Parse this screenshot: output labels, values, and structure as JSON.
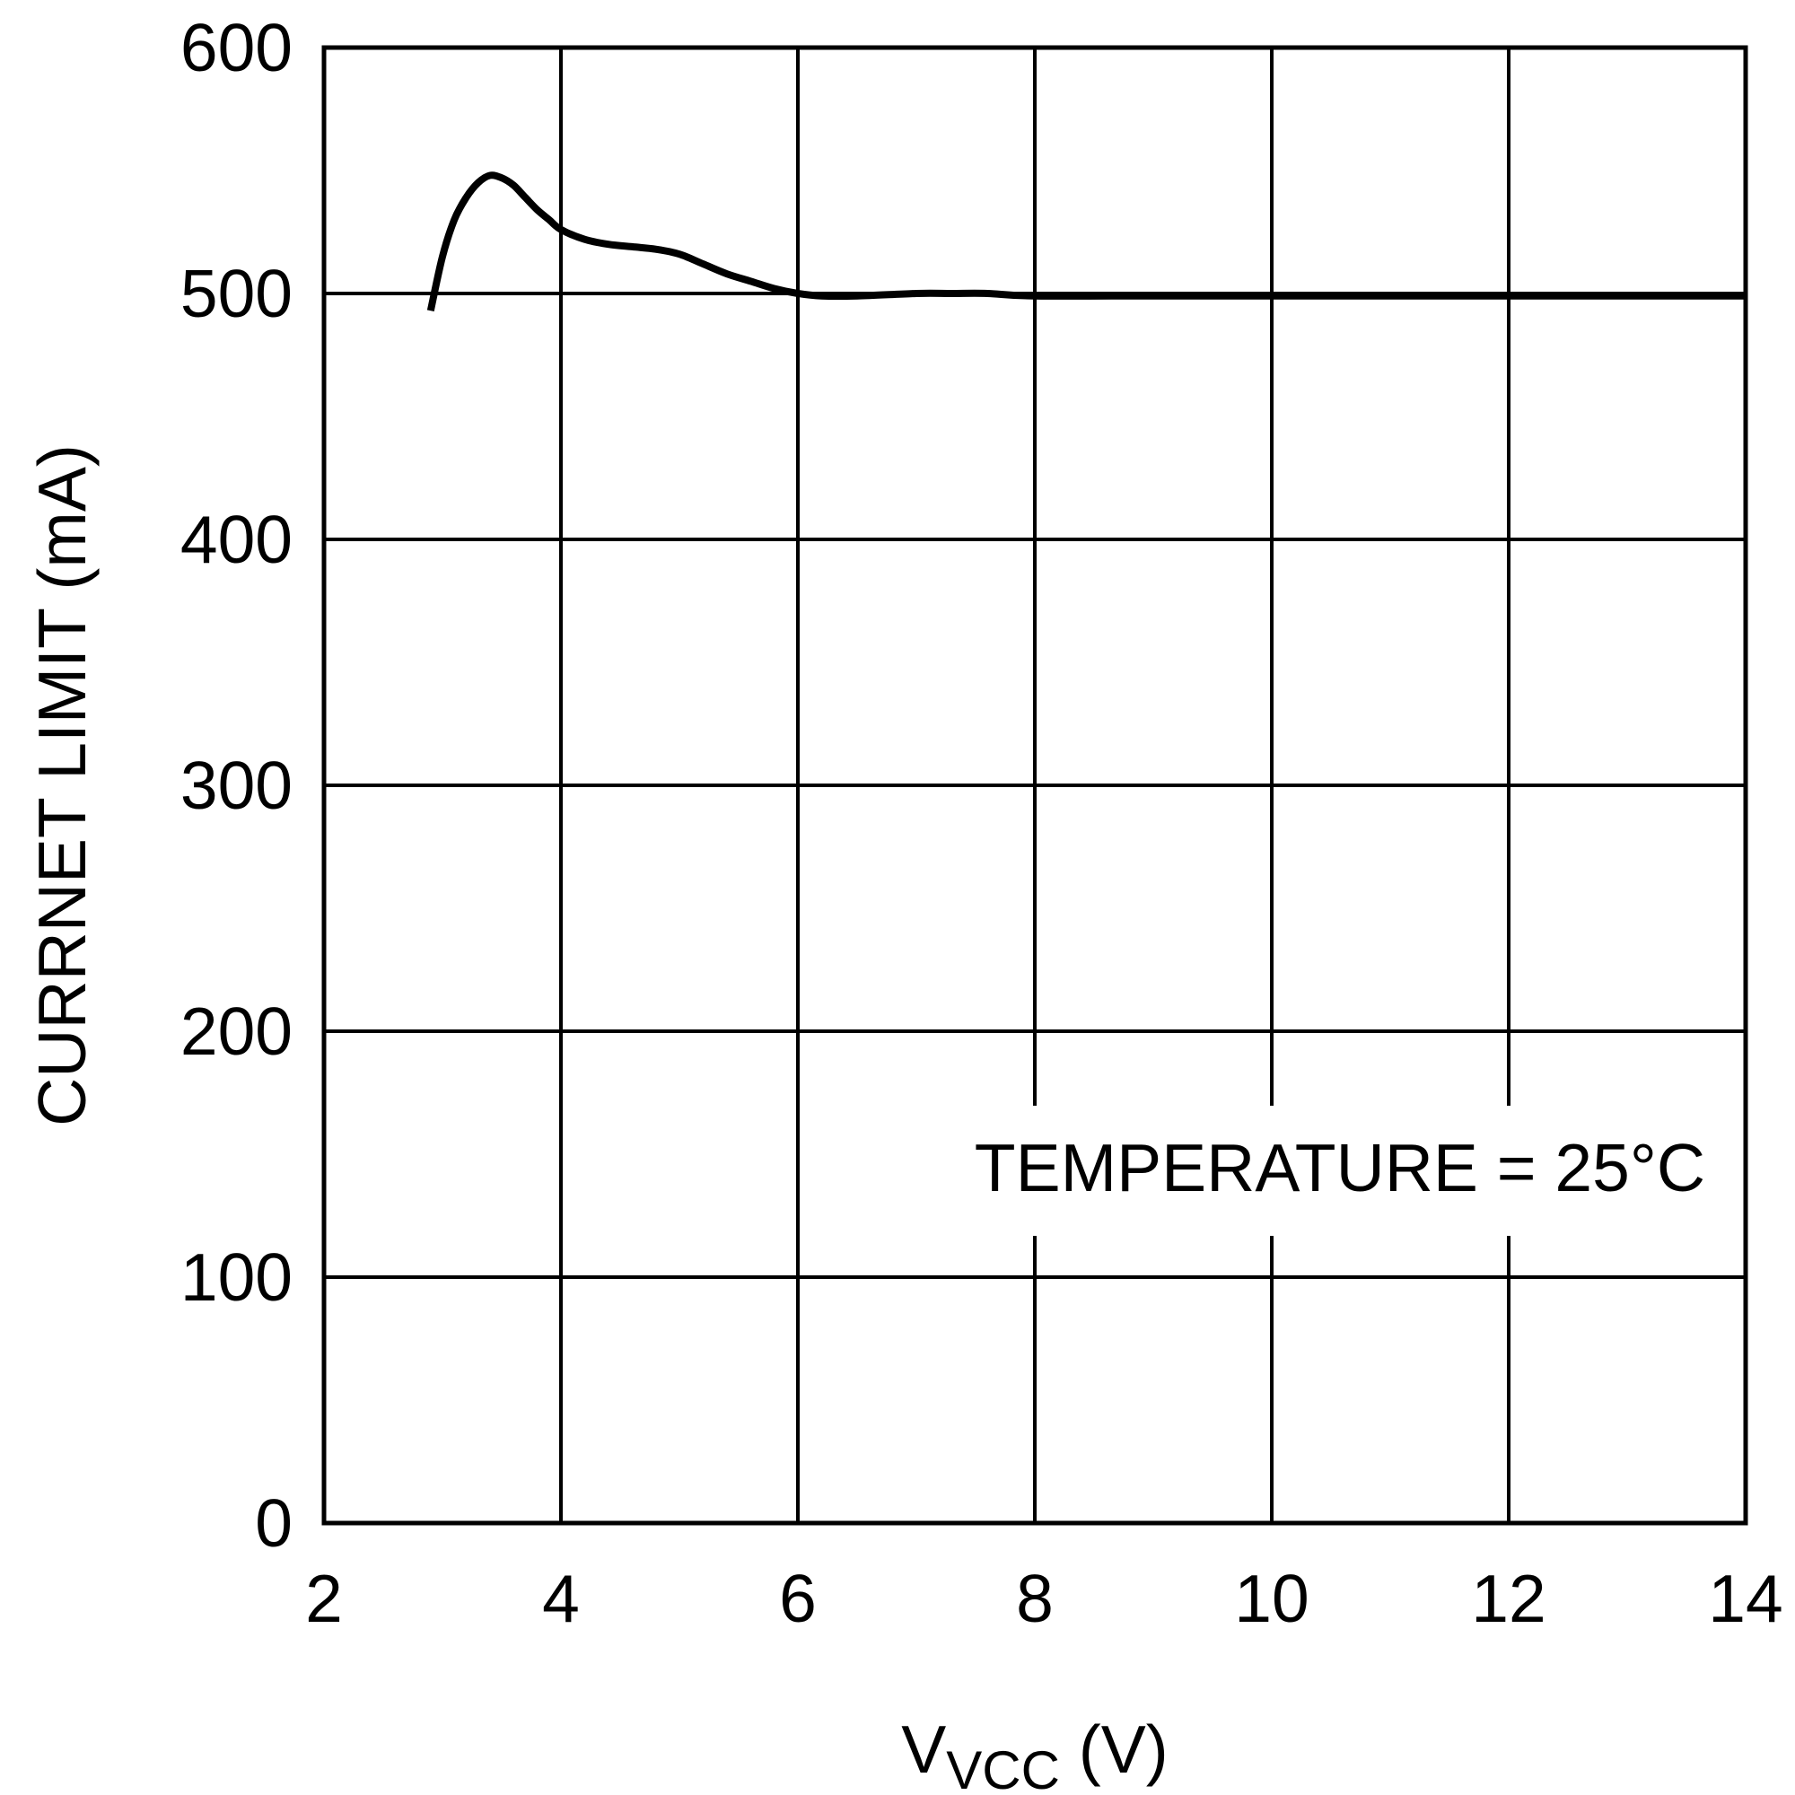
{
  "chart_data": {
    "type": "line",
    "title": "",
    "xlabel_main": "V",
    "xlabel_sub": "VCC",
    "xlabel_unit": " (V)",
    "ylabel": "CURRNET LIMIT (mA)",
    "xlim": [
      2,
      14
    ],
    "ylim": [
      0,
      600
    ],
    "x_ticks": [
      2,
      4,
      6,
      8,
      10,
      12,
      14
    ],
    "y_ticks": [
      0,
      100,
      200,
      300,
      400,
      500,
      600
    ],
    "x_tick_labels": [
      "2",
      "4",
      "6",
      "8",
      "10",
      "12",
      "14"
    ],
    "y_tick_labels": [
      "0",
      "100",
      "200",
      "300",
      "400",
      "500",
      "600"
    ],
    "grid": true,
    "annotation": "TEMPERATURE = 25°C",
    "series": [
      {
        "x": [
          2.9,
          3.0,
          3.1,
          3.2,
          3.3,
          3.4,
          3.5,
          3.6,
          3.7,
          3.8,
          3.9,
          4.0,
          4.2,
          4.4,
          4.6,
          4.8,
          5.0,
          5.2,
          5.4,
          5.6,
          5.8,
          6.0,
          6.2,
          6.5,
          7.0,
          7.3,
          7.6,
          8.0,
          9.0,
          10.0,
          11.0,
          12.0,
          13.0,
          14.0
        ],
        "y": [
          493,
          515,
          530,
          539,
          545,
          548,
          547,
          544,
          539,
          534,
          530,
          526,
          522,
          520,
          519,
          518,
          516,
          512,
          508,
          505,
          502,
          500,
          499,
          499,
          500,
          500,
          500,
          499,
          499,
          499,
          499,
          499,
          499,
          499
        ]
      }
    ],
    "line_color": "#000000"
  }
}
